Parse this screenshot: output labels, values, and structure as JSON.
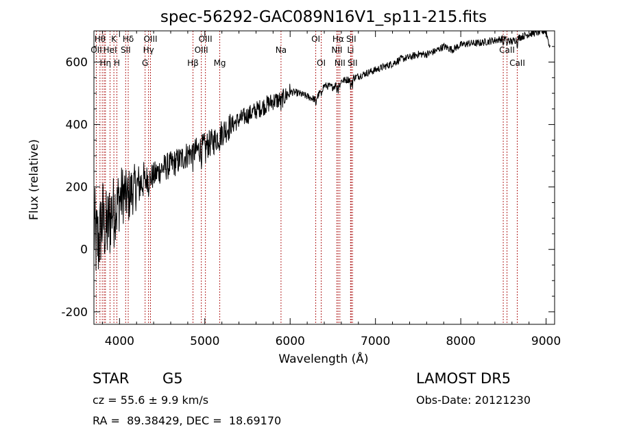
{
  "chart_data": {
    "type": "line",
    "title": "spec-56292-GAC089N16V1_sp11-215.fits",
    "xlabel": "Wavelength (Å)",
    "ylabel": "Flux (relative)",
    "xlim": [
      3700,
      9100
    ],
    "ylim": [
      -240,
      700
    ],
    "x_ticks": [
      4000,
      5000,
      6000,
      7000,
      8000,
      9000
    ],
    "y_ticks": [
      -200,
      0,
      200,
      400,
      600
    ],
    "grid": false,
    "line_color": "#000000",
    "marker_color": "#b22222",
    "series": [
      {
        "x": [
          3700,
          3750,
          3800,
          3850,
          3900,
          3950,
          4000,
          4050,
          4100,
          4150,
          4200,
          4300,
          4400,
          4500,
          4600,
          4700,
          4800,
          4900,
          5000,
          5100,
          5200,
          5300,
          5400,
          5500,
          5600,
          5700,
          5800,
          5900,
          6000,
          6100,
          6200,
          6300,
          6400,
          6500,
          6600,
          6700,
          6800,
          6900,
          7000,
          7100,
          7200,
          7300,
          7400,
          7500,
          7600,
          7700,
          7800,
          7900,
          8000,
          8100,
          8200,
          8300,
          8400,
          8500,
          8600,
          8700,
          8800,
          8900,
          9000,
          9050
        ],
        "y": [
          60,
          20,
          110,
          60,
          120,
          140,
          160,
          180,
          170,
          190,
          200,
          225,
          235,
          260,
          270,
          285,
          305,
          315,
          330,
          345,
          375,
          395,
          415,
          430,
          445,
          460,
          475,
          480,
          505,
          500,
          490,
          480,
          525,
          520,
          540,
          545,
          555,
          565,
          575,
          585,
          595,
          610,
          615,
          625,
          625,
          635,
          650,
          640,
          655,
          660,
          660,
          665,
          670,
          675,
          665,
          680,
          690,
          695,
          700,
          640
        ]
      }
    ],
    "line_markers": [
      {
        "x": 3771,
        "label": "Hθ",
        "row": 0
      },
      {
        "x": 3798,
        "label": "",
        "row": 0
      },
      {
        "x": 3820,
        "label": "",
        "row": 0
      },
      {
        "x": 3728,
        "label": "OII",
        "row": 1
      },
      {
        "x": 3835,
        "label": "Hη",
        "row": 2
      },
      {
        "x": 3889,
        "label": "HeI",
        "row": 1
      },
      {
        "x": 3934,
        "label": "K",
        "row": 0
      },
      {
        "x": 3969,
        "label": "H",
        "row": 2
      },
      {
        "x": 4072,
        "label": "SII",
        "row": 1
      },
      {
        "x": 4102,
        "label": "Hδ",
        "row": 0
      },
      {
        "x": 4300,
        "label": "G",
        "row": 2
      },
      {
        "x": 4340,
        "label": "Hγ",
        "row": 1
      },
      {
        "x": 4363,
        "label": "OIII",
        "row": 0
      },
      {
        "x": 4861,
        "label": "Hβ",
        "row": 2
      },
      {
        "x": 4959,
        "label": "OIII",
        "row": 1
      },
      {
        "x": 5007,
        "label": "OIII",
        "row": 0
      },
      {
        "x": 5175,
        "label": "Mg",
        "row": 2
      },
      {
        "x": 5893,
        "label": "Na",
        "row": 1
      },
      {
        "x": 6300,
        "label": "OI",
        "row": 0
      },
      {
        "x": 6364,
        "label": "OI",
        "row": 2
      },
      {
        "x": 6548,
        "label": "NII",
        "row": 1
      },
      {
        "x": 6563,
        "label": "Hα",
        "row": 0
      },
      {
        "x": 6583,
        "label": "NII",
        "row": 2
      },
      {
        "x": 6708,
        "label": "Li",
        "row": 1
      },
      {
        "x": 6716,
        "label": "SII",
        "row": 0
      },
      {
        "x": 6731,
        "label": "SII",
        "row": 2
      },
      {
        "x": 8498,
        "label": "",
        "row": 0
      },
      {
        "x": 8542,
        "label": "CaII",
        "row": 1
      },
      {
        "x": 8662,
        "label": "CaII",
        "row": 2
      }
    ],
    "top_label_left": "OIII",
    "top_label_right_extra": "CaII"
  },
  "info": {
    "class_label": "STAR",
    "subclass": "G5",
    "survey": "LAMOST DR5",
    "cz_text": "cz = 55.6 ± 9.9 km/s",
    "obs_date": "Obs-Date: 20121230",
    "radec": "RA =  89.38429, DEC =  18.69170"
  }
}
